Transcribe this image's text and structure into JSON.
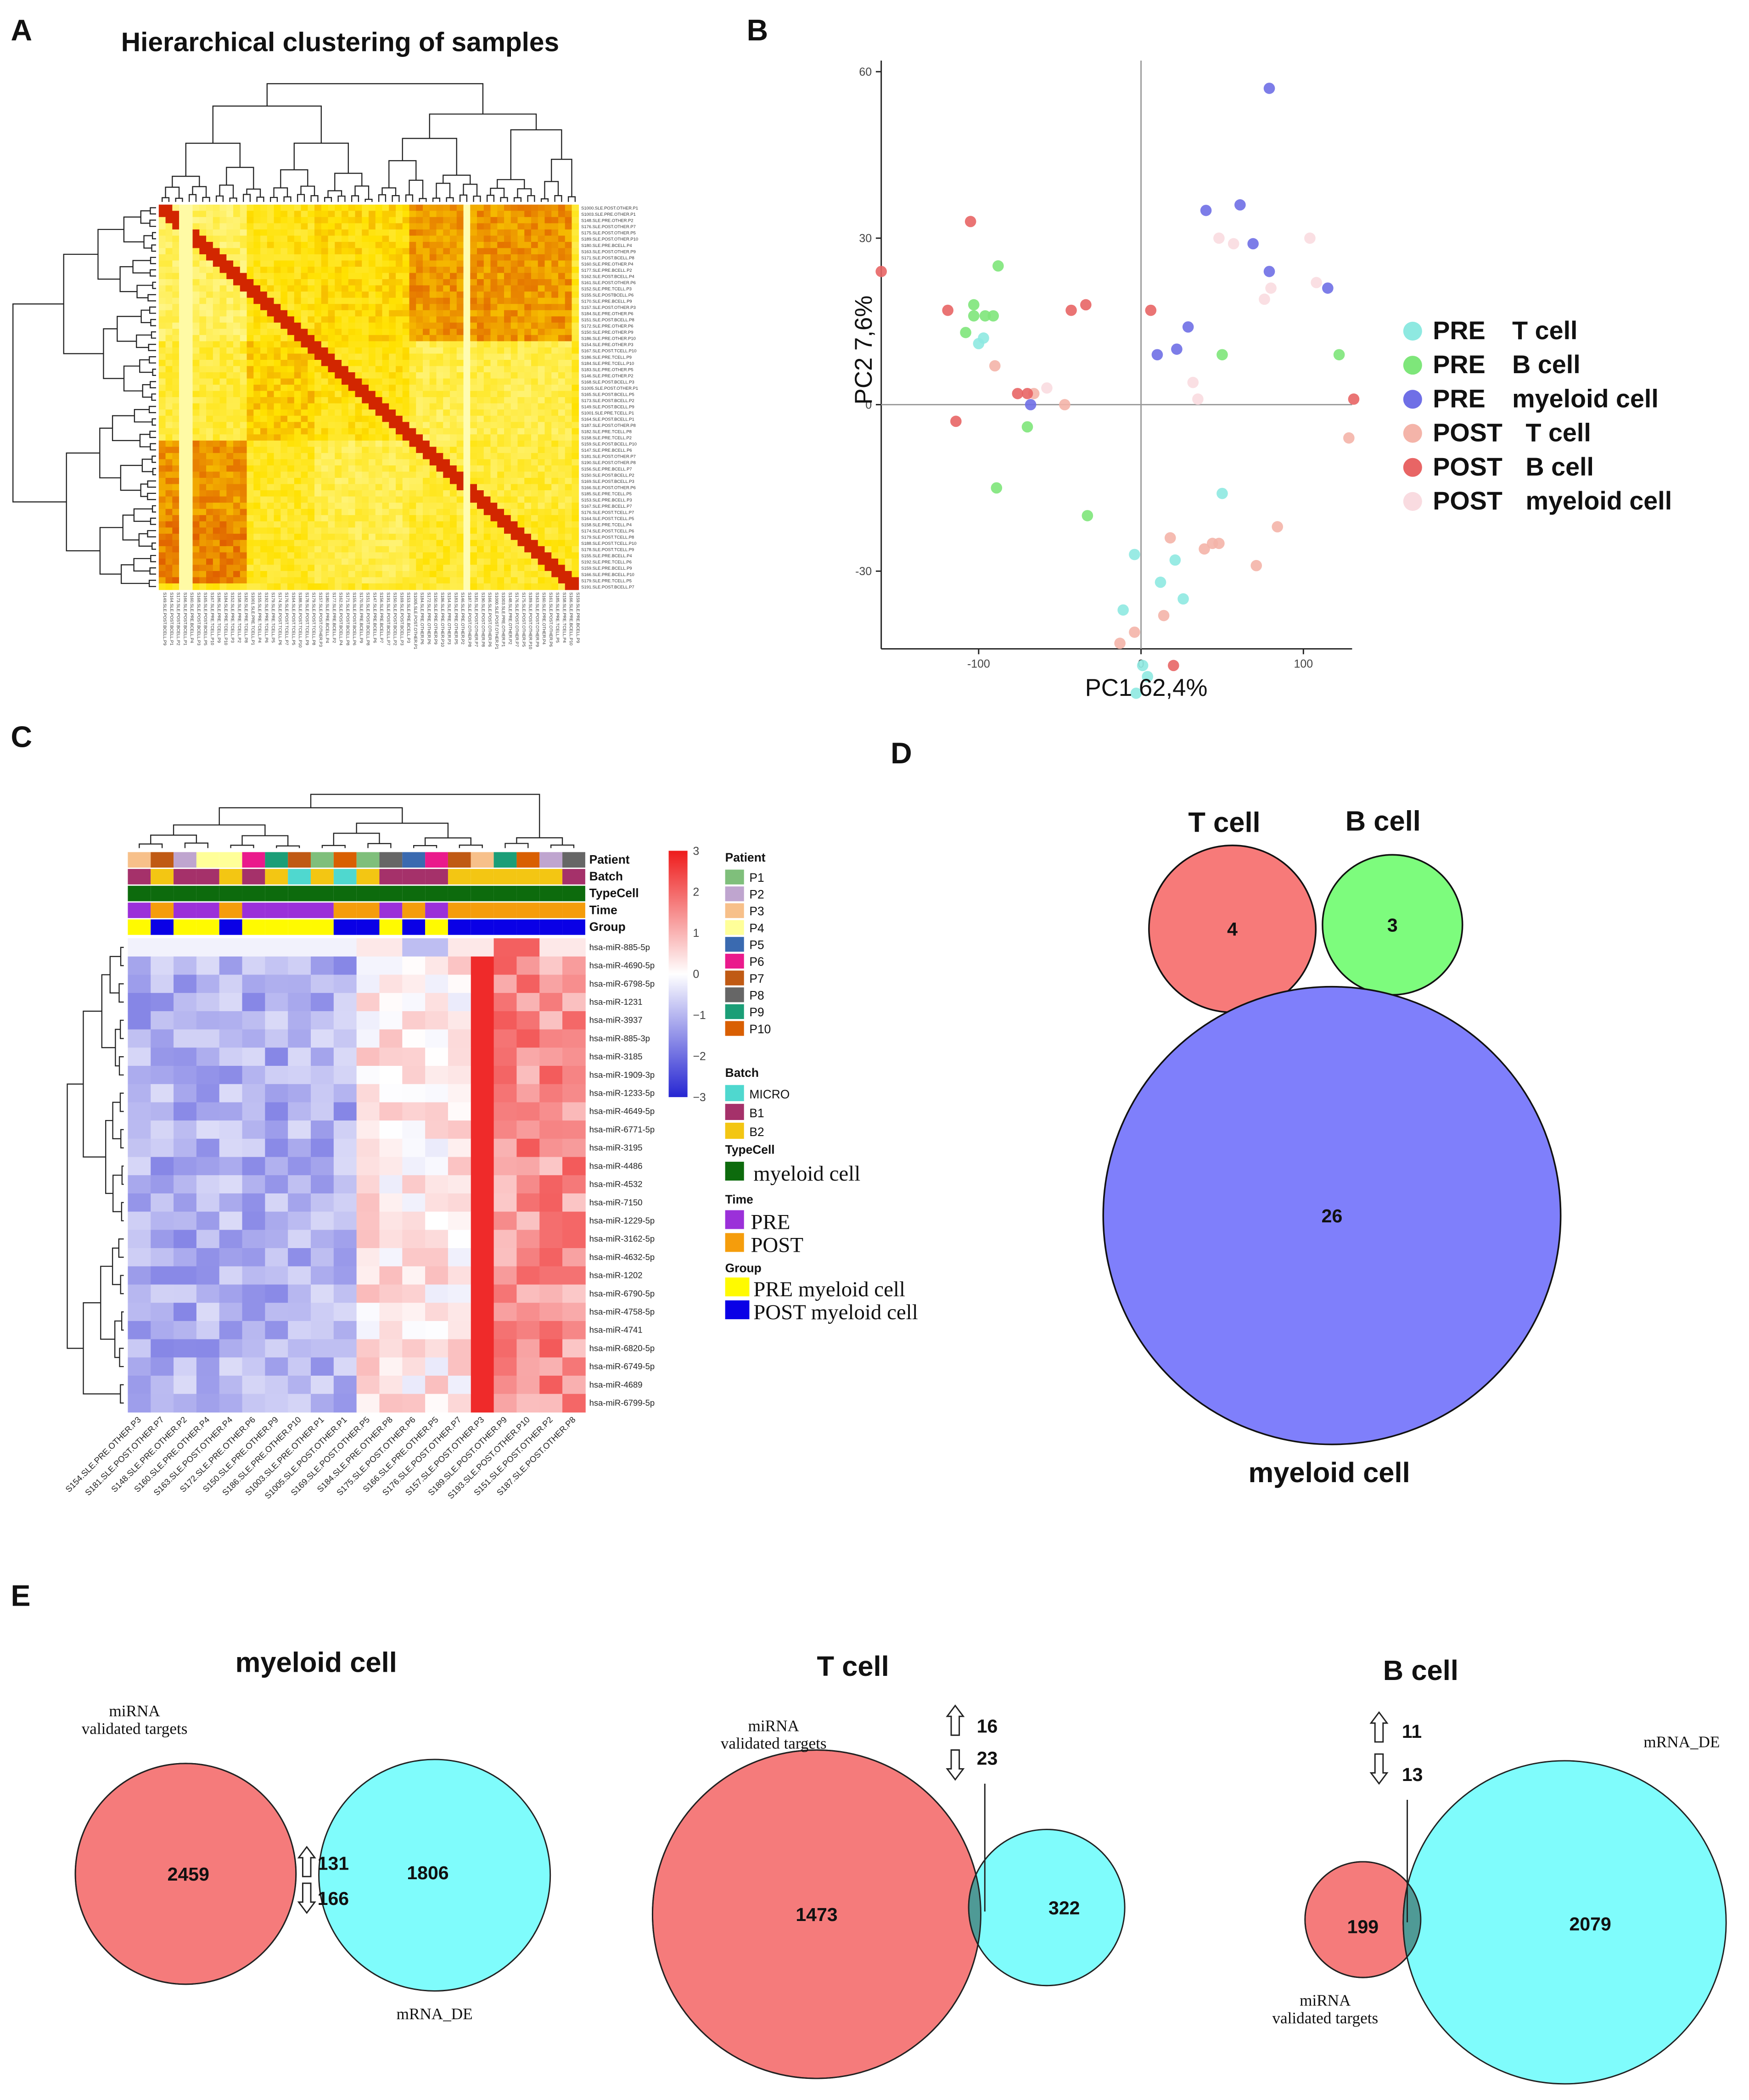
{
  "panels": {
    "a": "A",
    "b": "B",
    "c": "C",
    "d": "D",
    "e": "E"
  },
  "chart_data": [
    {
      "type": "heatmap",
      "title": "Hierarchical clustering of samples",
      "row_labels": [
        "S1000.SLE.POST.OTHER.P1",
        "S1003.SLE.PRE.OTHER.P1",
        "S148.SLE.PRE.OTHER.P2",
        "S176.SLE.POST.OTHER.P7",
        "S175.SLE.POST.OTHER.P5",
        "S189.SLE.POST.OTHER.P10",
        "S180.SLE.PRE.BCELL.P4",
        "S163.SLE.POST.OTHER.P9",
        "S171.SLE.POST.BCELL.P8",
        "S160.SLE.PRE.OTHER.P4",
        "S177.SLE.PRE.BCELL.P2",
        "S162.SLE.POST.BCELL.P4",
        "S161.SLE.POST.OTHER.P6",
        "S152.SLE.PRE.TCELL.P3",
        "S155.SLE.POSTBCELL.P6",
        "S170.SLE.PRE.BCELL.P9",
        "S157.SLE.POST.OTHER.P3",
        "S184.SLE.PRE.OTHER.P6",
        "S151.SLE.POST.BCELL.P8",
        "S172.SLE.PRE.OTHER.P6",
        "S150.SLE.PRE.OTHER.P9",
        "S186.SLE.PRE.OTHER.P10",
        "S154.SLE.PRE.OTHER.P3",
        "S167.SLE.POST.TCELL.P10",
        "S186.SLE.PRE.TCELL.P9",
        "S184.SLE.PRE.TCELL.P10",
        "S183.SLE.PRE.OTHER.P5",
        "S146.SLE.PRE.OTHER.P2",
        "S168.SLE.POST.BCELL.P3",
        "S1005.SLE.POST.OTHER.P1",
        "S165.SLE.POST.BCELL.P5",
        "S173.SLE.POST.BCELL.P2",
        "S149.SLE.POST.BCELL.P9",
        "S1001.SLE.PRE.TCELL.P1",
        "S164.SLE.POST.BCELL.P1",
        "S187.SLE.POST.OTHER.P8",
        "S182.SLE.PRE.TCELL.P8",
        "S158.SLE.PRE.TCELL.P2",
        "S159.SLE.POST.BCELL.P10",
        "S147.SLE.PRE.BCELL.P6",
        "S181.SLE.POST.OTHER.P7",
        "S190.SLE.POST.OTHER.P8",
        "S156.SLE.PRE.BCELL.P7",
        "S150.SLE.POST.BCELL.P2",
        "S169.SLE.POST.BCELL.P3",
        "S166.SLE.POST.OTHER.P6",
        "S185.SLE.PRE.TCELL.P5",
        "S153.SLE.PRE.BCELL.P3",
        "S167.SLE.PRE.BCELL.P7",
        "S176.SLE.POST.TCELL.P7",
        "S164.SLE.POST.TCELL.P5",
        "S158.SLE.PRE.TCELL.P4",
        "S174.SLE.POST.TCELL.P6",
        "S179.SLE.POST.TCELL.P8",
        "S188.SLE.POST.TCELL.P10",
        "S178.SLE.POST.TCELL.P9",
        "S155.SLE.PRE.BCELL.P4",
        "S192.SLE.PRE.TCELL.P6",
        "S159.SLE.PRE.BCELL.P9",
        "S166.SLE.PRE.BCELL.P10",
        "S179.SLE.PRE.TCELL.P5",
        "S191.SLE.POST.BCELL.P7"
      ],
      "col_labels": [
        "S149.SLE.POST.BCELL.P9",
        "S164.SLE.POST.BCELL.P1",
        "S173.SLE.POST.BCELL.P2",
        "S166.SLE.POST.BCELL.P1",
        "S160.SLE.PRE.BCELL.P4",
        "S168.SLE.POST.BCELL.P3",
        "S165.SLE.POST.BCELL.P5",
        "S167.SLE.PRE.TCELL.P10",
        "S186.SLE.PRE.TCELL.P9",
        "S184.SLE.PRE.TCELL.P10",
        "S152.SLE.PRE.TCELL.P3",
        "S158.SLE.PRE.TCELL.P2",
        "S182.SLE.PRE.TCELL.P8",
        "S1001.SLE.PRE.TCELL.P1",
        "S155.SLE.PRE.TCELL.P4",
        "S192.SLE.PRE.TCELL.P6",
        "S179.SLE.PRE.TCELL.P5",
        "S174.SLE.POST.TCELL.P6",
        "S176.SLE.POST.TCELL.P7",
        "S164.SLE.POST.TCELL.P5",
        "S188.SLE.POST.TCELL.P10",
        "S178.SLE.POST.TCELL.P9",
        "S179.SLE.POST.TCELL.P8",
        "S157.SLE.POST.OTHER.P3",
        "S180.SLE.PRE.BCELL.P4",
        "S177.SLE.PRE.BCELL.P2",
        "S162.SLE.POST.BCELL.P4",
        "S171.SLE.POST.BCELL.P8",
        "S155.SLE.POST.BCELL.P6",
        "S170.SLE.PRE.BCELL.P9",
        "S151.SLE.POST.BCELL.P8",
        "S147.SLE.PRE.BCELL.P6",
        "S156.SLE.PRE.BCELL.P7",
        "S191.SLE.POST.BCELL.P7",
        "S150.SLE.POST.BCELL.P2",
        "S169.SLE.POST.BCELL.P3",
        "S153.SLE.PRE.BCELL.P3",
        "S1005.SLE.POST.OTHER.P1",
        "S184.SLE.PRE.OTHER.P6",
        "S172.SLE.PRE.OTHER.P6",
        "S150.SLE.PRE.OTHER.P9",
        "S186.SLE.PRE.OTHER.P10",
        "S154.SLE.PRE.OTHER.P3",
        "S183.SLE.PRE.OTHER.P5",
        "S146.SLE.PRE.OTHER.P2",
        "S187.SLE.POST.OTHER.P8",
        "S181.SLE.POST.OTHER.P7",
        "S190.SLE.POST.OTHER.P8",
        "S166.SLE.POST.OTHER.P6",
        "S1000.SLE.POST.OTHER.P1",
        "S1003.SLE.PRE.OTHER.P1",
        "S148.SLE.PRE.OTHER.P2",
        "S176.SLE.POST.OTHER.P7",
        "S175.SLE.POST.OTHER.P5",
        "S189.SLE.POST.OTHER.P10",
        "S163.SLE.POST.OTHER.P9",
        "S160.SLE.PRE.OTHER.P4",
        "S161.SLE.POST.OTHER.P6",
        "S185.SLE.PRE.TCELL.P5",
        "S158.SLE.PRE.TCELL.P4",
        "S166.SLE.PRE.BCELL.P10",
        "S159.SLE.PRE.BCELL.P9"
      ],
      "blocks": [
        {
          "row_range": [
            0,
            22
          ],
          "col_range": [
            0,
            13
          ],
          "value": 0.25
        },
        {
          "row_range": [
            0,
            22
          ],
          "col_range": [
            13,
            23
          ],
          "value": 0.45
        },
        {
          "row_range": [
            0,
            22
          ],
          "col_range": [
            23,
            37
          ],
          "value": 0.5
        },
        {
          "row_range": [
            0,
            22
          ],
          "col_range": [
            37,
            61
          ],
          "value": 0.7
        },
        {
          "row_range": [
            22,
            38
          ],
          "col_range": [
            0,
            13
          ],
          "value": 0.35
        },
        {
          "row_range": [
            22,
            38
          ],
          "col_range": [
            13,
            23
          ],
          "value": 0.55
        },
        {
          "row_range": [
            22,
            38
          ],
          "col_range": [
            23,
            37
          ],
          "value": 0.45
        },
        {
          "row_range": [
            22,
            38
          ],
          "col_range": [
            37,
            61
          ],
          "value": 0.3
        },
        {
          "row_range": [
            38,
            50
          ],
          "col_range": [
            0,
            13
          ],
          "value": 0.7
        },
        {
          "row_range": [
            38,
            50
          ],
          "col_range": [
            13,
            23
          ],
          "value": 0.4
        },
        {
          "row_range": [
            38,
            50
          ],
          "col_range": [
            23,
            37
          ],
          "value": 0.3
        },
        {
          "row_range": [
            38,
            50
          ],
          "col_range": [
            37,
            61
          ],
          "value": 0.35
        },
        {
          "row_range": [
            50,
            61
          ],
          "col_range": [
            0,
            13
          ],
          "value": 0.75
        },
        {
          "row_range": [
            50,
            61
          ],
          "col_range": [
            13,
            23
          ],
          "value": 0.4
        },
        {
          "row_range": [
            50,
            61
          ],
          "col_range": [
            23,
            37
          ],
          "value": 0.3
        },
        {
          "row_range": [
            50,
            61
          ],
          "col_range": [
            37,
            61
          ],
          "value": 0.4
        }
      ],
      "colormap": [
        "#ffffc4",
        "#ffe100",
        "#d22600"
      ]
    },
    {
      "type": "scatter",
      "title": "",
      "xlabel": "PC1 62,4%",
      "ylabel": "PC2 7,6%",
      "xlim": [
        -160,
        130
      ],
      "ylim": [
        -44,
        62
      ],
      "xticks": [
        -100,
        0,
        100
      ],
      "yticks": [
        -30,
        0,
        30,
        60
      ],
      "series": [
        {
          "name": "PRE T cell",
          "label": "PRE",
          "cell": "T cell",
          "color": "#8ee9e1",
          "points": [
            [
              -100,
              11
            ],
            [
              -97,
              12
            ],
            [
              -4,
              -27
            ],
            [
              -11,
              -37
            ],
            [
              12,
              -32
            ],
            [
              21,
              -28
            ],
            [
              26,
              -35
            ],
            [
              50,
              -16
            ],
            [
              1,
              -47
            ],
            [
              4,
              -49
            ],
            [
              -3,
              -52
            ]
          ]
        },
        {
          "name": "PRE B cell",
          "label": "PRE",
          "cell": "B cell",
          "color": "#7ee67a",
          "points": [
            [
              -103,
              18
            ],
            [
              -103,
              16
            ],
            [
              -108,
              13
            ],
            [
              -96,
              16
            ],
            [
              -91,
              16
            ],
            [
              -88,
              25
            ],
            [
              -89,
              -15
            ],
            [
              -70,
              -4
            ],
            [
              -33,
              -20
            ],
            [
              50,
              9
            ],
            [
              122,
              9
            ]
          ]
        },
        {
          "name": "PRE myeloid cell",
          "label": "PRE",
          "cell": "myeloid cell",
          "color": "#6f6fe6",
          "points": [
            [
              79,
              57
            ],
            [
              40,
              35
            ],
            [
              61,
              36
            ],
            [
              69,
              29
            ],
            [
              79,
              24
            ],
            [
              115,
              21
            ],
            [
              29,
              14
            ],
            [
              22,
              10
            ],
            [
              10,
              9
            ],
            [
              -68,
              0
            ]
          ]
        },
        {
          "name": "POST T cell",
          "label": "POST",
          "cell": "T cell",
          "color": "#f4b4a9",
          "points": [
            [
              -90,
              7
            ],
            [
              -66,
              2
            ],
            [
              -47,
              0
            ],
            [
              -13,
              -43
            ],
            [
              -4,
              -41
            ],
            [
              14,
              -38
            ],
            [
              18,
              -24
            ],
            [
              39,
              -26
            ],
            [
              44,
              -25
            ],
            [
              48,
              -25
            ],
            [
              71,
              -29
            ],
            [
              128,
              -6
            ],
            [
              84,
              -22
            ]
          ]
        },
        {
          "name": "POST B cell",
          "label": "POST",
          "cell": "B cell",
          "color": "#e86565",
          "points": [
            [
              -105,
              33
            ],
            [
              -160,
              24
            ],
            [
              -119,
              17
            ],
            [
              -43,
              17
            ],
            [
              -34,
              18
            ],
            [
              6,
              17
            ],
            [
              -114,
              -3
            ],
            [
              -76,
              2
            ],
            [
              -70,
              2
            ],
            [
              131,
              1
            ],
            [
              20,
              -47
            ]
          ]
        },
        {
          "name": "POST myeloid cell",
          "label": "POST",
          "cell": "myeloid cell",
          "color": "#f9dbe0",
          "points": [
            [
              -58,
              3
            ],
            [
              48,
              30
            ],
            [
              57,
              29
            ],
            [
              76,
              19
            ],
            [
              104,
              30
            ],
            [
              108,
              22
            ],
            [
              80,
              21
            ],
            [
              32,
              4
            ],
            [
              35,
              1
            ]
          ]
        }
      ]
    },
    {
      "type": "heatmap",
      "title": "",
      "rows": [
        "hsa-miR-885-5p",
        "hsa-miR-4690-5p",
        "hsa-miR-6798-5p",
        "hsa-miR-1231",
        "hsa-miR-3937",
        "hsa-miR-885-3p",
        "hsa-miR-3185",
        "hsa-miR-1909-3p",
        "hsa-miR-1233-5p",
        "hsa-miR-4649-5p",
        "hsa-miR-6771-5p",
        "hsa-miR-3195",
        "hsa-miR-4486",
        "hsa-miR-4532",
        "hsa-miR-7150",
        "hsa-miR-1229-5p",
        "hsa-miR-3162-5p",
        "hsa-miR-4632-5p",
        "hsa-miR-1202",
        "hsa-miR-6790-5p",
        "hsa-miR-4758-5p",
        "hsa-miR-4741",
        "hsa-miR-6820-5p",
        "hsa-miR-6749-5p",
        "hsa-miR-4689",
        "hsa-miR-6799-5p"
      ],
      "columns": [
        "S154.SLE.PRE.OTHER.P3",
        "S181.SLE.POST.OTHER.P7",
        "S148.SLE.PRE.OTHER.P2",
        "S160.SLE.PRE.OTHER.P4",
        "S163.SLE.POST.OTHER.P4",
        "S172.SLE.PRE.OTHER.P6",
        "S150.SLE.PRE.OTHER.P9",
        "S186.SLE.PRE.OTHER.P10",
        "S1003.SLE.PRE.OTHER.P1",
        "S1005.SLE.POST.OTHER.P1",
        "S169.SLE.POST.OTHER.P5",
        "S184.SLE.PRE.OTHER.P8",
        "S175.SLE.POST.OTHER.P6",
        "S166.SLE.PRE.OTHER.P5",
        "S176.SLE.POST.OTHER.P7",
        "S157.SLE.POST.OTHER.P3",
        "S189.SLE.POST.OTHER.P9",
        "S193.SLE.POST.OTHER.P10",
        "S151.SLE.POST.OTHER.P2",
        "S187.SLE.POST.OTHER.P8"
      ],
      "column_annotation_labels": [
        "Patient",
        "Batch",
        "TypeCell",
        "Time",
        "Group"
      ],
      "color_scale": {
        "min": -3,
        "max": 3,
        "ticks": [
          3,
          2,
          1,
          0,
          -1,
          -2,
          -3
        ],
        "tick_labels": [
          "3",
          "2",
          "1",
          "0",
          "−1",
          "−2",
          "−3"
        ],
        "colors": [
          "#2626d2",
          "#ffffff",
          "#ee1c1c"
        ]
      },
      "values_note": "row-wise z-scores; block pattern estimated from figure"
    },
    {
      "type": "venn",
      "title": "",
      "sets": [
        {
          "name": "T cell",
          "count": 4,
          "color": "#f77a79"
        },
        {
          "name": "B cell",
          "count": 3,
          "color": "#7dfc7d"
        },
        {
          "name": "myeloid cell",
          "count": 26,
          "color": "#7f7ffb"
        }
      ]
    },
    {
      "type": "venn",
      "title": "myeloid cell",
      "sets": [
        {
          "name": "miRNA validated targets",
          "count": 2459
        },
        {
          "name": "mRNA_DE",
          "count": 1806
        }
      ],
      "intersection": {
        "up": 131,
        "down": 166
      }
    },
    {
      "type": "venn",
      "title": "T cell",
      "sets": [
        {
          "name": "miRNA validated targets",
          "count": 1473
        },
        {
          "name": "mRNA_DE",
          "count": 322
        }
      ],
      "intersection": {
        "up": 16,
        "down": 23
      }
    },
    {
      "type": "venn",
      "title": "B cell",
      "sets": [
        {
          "name": "miRNA validated targets",
          "count": 199
        },
        {
          "name": "mRNA_DE",
          "count": 2079
        }
      ],
      "intersection": {
        "up": 11,
        "down": 13
      }
    }
  ],
  "legend_c": {
    "patient_title": "Patient",
    "patients": [
      {
        "label": "P1",
        "color": "#7fbf7b"
      },
      {
        "label": "P2",
        "color": "#bfa5cf"
      },
      {
        "label": "P3",
        "color": "#f7c08a"
      },
      {
        "label": "P4",
        "color": "#ffff99"
      },
      {
        "label": "P5",
        "color": "#3a6ab0"
      },
      {
        "label": "P6",
        "color": "#ea1a8c"
      },
      {
        "label": "P7",
        "color": "#c05a14"
      },
      {
        "label": "P8",
        "color": "#666666"
      },
      {
        "label": "P9",
        "color": "#1b9e77"
      },
      {
        "label": "P10",
        "color": "#d95f02"
      }
    ],
    "batch_title": "Batch",
    "batches": [
      {
        "label": "MICRO",
        "color": "#4fd8cf"
      },
      {
        "label": "B1",
        "color": "#a5316a"
      },
      {
        "label": "B2",
        "color": "#f3c613"
      }
    ],
    "typecell_title": "TypeCell",
    "typecell": [
      {
        "label": "myeloid cell",
        "color": "#0d6b0d"
      }
    ],
    "time_title": "Time",
    "times": [
      {
        "label": "PRE",
        "color": "#9b30d9"
      },
      {
        "label": "POST",
        "color": "#f59d0c"
      }
    ],
    "group_title": "Group",
    "groups": [
      {
        "label": "PRE myeloid cell",
        "color": "#fffa00"
      },
      {
        "label": "POST myeloid cell",
        "color": "#0a00e6"
      }
    ]
  },
  "venn_labels": {
    "mirna_line1": "miRNA",
    "mirna_line2": "validated targets",
    "mrna": "mRNA_DE"
  }
}
